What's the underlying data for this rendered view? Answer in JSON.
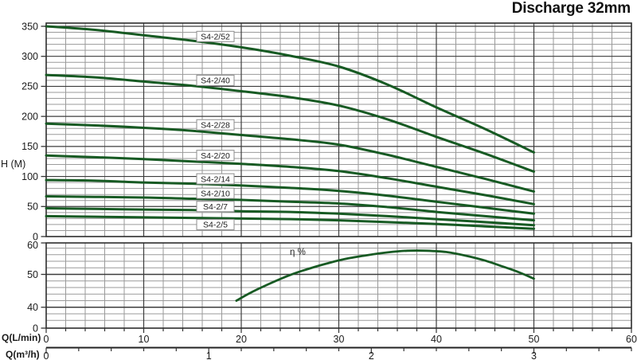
{
  "title": "Discharge 32mm",
  "colors": {
    "curve": "#175a23",
    "grid_minor": "#9a9a9a",
    "grid_major": "#3c3c3c",
    "border": "#2d2d2d",
    "tick": "#333333",
    "text": "#1b1b1b",
    "label_box_border": "#8c8c8c",
    "label_box_fill": "#ffffff"
  },
  "chart_data": {
    "type": "line",
    "title": "Discharge 32mm",
    "x_axis": {
      "primary_label": "Q(L/min)",
      "secondary_label": "Q(m³/h)",
      "primary_ticks": [
        0,
        10,
        20,
        30,
        40,
        50,
        60
      ],
      "secondary_ticks": [
        0,
        1,
        2,
        3
      ],
      "range_lmin": [
        0,
        60
      ],
      "minor_step_lmin": 2,
      "minor_step_m3h": 0.2,
      "secondary_max": 3.6
    },
    "head_axis": {
      "label": "H (M)",
      "ticks": [
        0,
        50,
        100,
        150,
        200,
        250,
        300,
        350
      ],
      "minor_step": 10,
      "range": [
        0,
        355
      ]
    },
    "efficiency_axis": {
      "ticks": [
        0,
        40,
        50,
        60
      ],
      "minor_step": 2,
      "range_shown": [
        34,
        60
      ]
    },
    "q_values": [
      0,
      5,
      10,
      15,
      20,
      25,
      30,
      35,
      40,
      45,
      50
    ],
    "series": [
      {
        "name": "S4-2/52",
        "label_h": 333,
        "head": [
          350,
          344,
          335,
          326,
          315,
          301,
          283,
          253,
          215,
          179,
          140
        ]
      },
      {
        "name": "S4-2/40",
        "label_h": 260,
        "head": [
          269,
          265,
          258,
          251,
          242,
          232,
          218,
          195,
          166,
          138,
          108
        ]
      },
      {
        "name": "S4-2/28",
        "label_h": 186,
        "head": [
          188,
          185,
          181,
          176,
          169,
          162,
          153,
          136,
          116,
          96,
          75
        ]
      },
      {
        "name": "S4-2/20",
        "label_h": 135,
        "head": [
          135,
          132,
          129,
          125,
          121,
          116,
          109,
          97,
          83,
          69,
          54
        ]
      },
      {
        "name": "S4-2/14",
        "label_h": 96,
        "head": [
          94,
          93,
          90,
          88,
          85,
          81,
          76,
          68,
          58,
          48,
          38
        ]
      },
      {
        "name": "S4-2/10",
        "label_h": 72,
        "head": [
          67,
          66,
          65,
          63,
          61,
          58,
          55,
          49,
          41,
          34,
          27
        ]
      },
      {
        "name": "S4-2/7",
        "label_h": 50,
        "head": [
          47,
          46,
          45,
          44,
          42,
          41,
          38,
          34,
          29,
          24,
          19
        ]
      },
      {
        "name": "S4-2/5",
        "label_h": 20,
        "head": [
          34,
          33,
          32,
          31,
          30,
          29,
          27,
          24,
          21,
          17,
          13
        ]
      }
    ],
    "efficiency_curve": {
      "label": "η %",
      "q": [
        19.5,
        21,
        23,
        25,
        27,
        29,
        31,
        33,
        35,
        37,
        39,
        41,
        43,
        45,
        47,
        48.5,
        50
      ],
      "eta": [
        42,
        44.5,
        47.3,
        49.8,
        51.8,
        53.5,
        54.9,
        55.9,
        56.7,
        57.2,
        57.2,
        56.8,
        55.7,
        54.2,
        52.2,
        50.6,
        48.7
      ]
    }
  }
}
